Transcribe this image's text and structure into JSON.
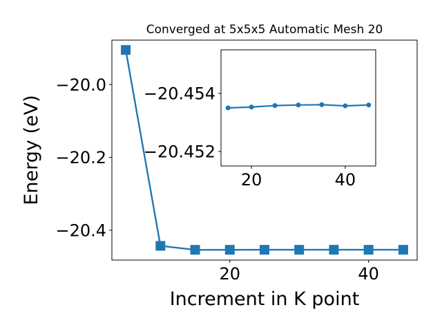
{
  "chart_data": [
    {
      "type": "line",
      "title": "Converged at 5x5x5 Automatic Mesh 20",
      "xlabel": "Increment in K point",
      "ylabel": "Energy (eV)",
      "x": [
        5,
        10,
        15,
        20,
        25,
        30,
        35,
        40,
        45
      ],
      "xlim": [
        3,
        47
      ],
      "ylim": [
        -20.482,
        -19.878
      ],
      "xticks": [
        20,
        40
      ],
      "xtick_labels": [
        "20",
        "40"
      ],
      "yticks": [
        -20.0,
        -20.2,
        -20.4
      ],
      "ytick_labels": [
        "−20.0",
        "−20.2",
        "−20.4"
      ],
      "series": [
        {
          "color": "#1f77b4",
          "marker": "square",
          "values": [
            -19.905,
            -20.443,
            -20.4538,
            -20.4538,
            -20.4537,
            -20.4537,
            -20.4537,
            -20.4537,
            -20.4537
          ]
        }
      ]
    },
    {
      "type": "line",
      "title": "",
      "xlabel": "",
      "ylabel": "",
      "x": [
        15,
        20,
        25,
        30,
        35,
        40,
        45
      ],
      "xlim": [
        13.5,
        46.5
      ],
      "ylim": [
        -20.4515,
        -20.4555
      ],
      "y_inverted": true,
      "xticks": [
        20,
        40
      ],
      "xtick_labels": [
        "20",
        "40"
      ],
      "yticks": [
        -20.454,
        -20.452
      ],
      "ytick_labels": [
        "−20.454",
        "−20.452"
      ],
      "series": [
        {
          "color": "#1f77b4",
          "marker": "circle",
          "values": [
            -20.4535,
            -20.45353,
            -20.45358,
            -20.4536,
            -20.45361,
            -20.45357,
            -20.4536
          ]
        }
      ]
    }
  ]
}
